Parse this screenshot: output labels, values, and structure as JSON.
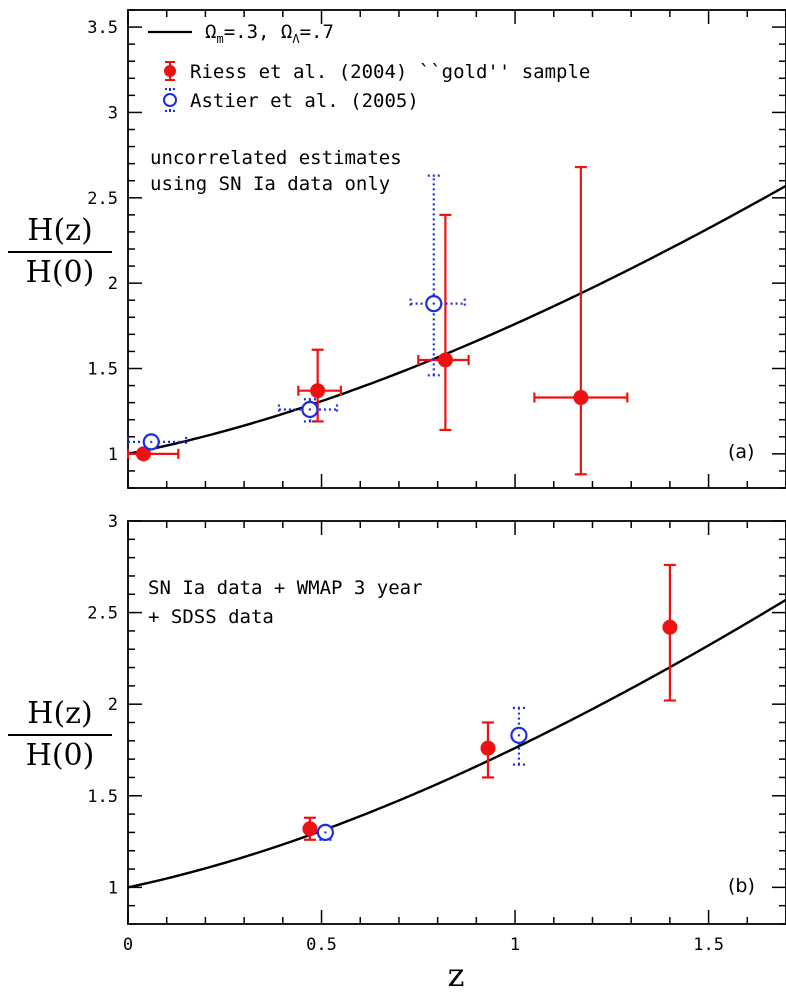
{
  "colors": {
    "riess": "#ee1111",
    "astier": "#1a2fe0",
    "model": "#000000"
  },
  "chart_data": [
    {
      "type": "scatter",
      "panel_label": "(a)",
      "xlabel": "z",
      "ylabel_num": "H(z)",
      "ylabel_den": "H(0)",
      "xlim": [
        0,
        1.7
      ],
      "ylim": [
        0.8,
        3.6
      ],
      "xticks": [
        "0",
        "0.5",
        "1",
        "1.5"
      ],
      "xtick_values": [
        0,
        0.5,
        1,
        1.5
      ],
      "yticks": [
        "1",
        "1.5",
        "2",
        "2.5",
        "3",
        "3.5"
      ],
      "ytick_values": [
        1,
        1.5,
        2,
        2.5,
        3,
        3.5
      ],
      "annotation": [
        "uncorrelated estimates",
        "using SN Ia data only"
      ],
      "legend": {
        "model": {
          "name": "Ω",
          "sub_m": "m",
          "part1": "=.3,  Ω",
          "sub_l": "Λ",
          "part2": "=.7"
        },
        "riess": "Riess et al. (2004) ``gold'' sample",
        "astier": "Astier et al. (2005)"
      },
      "model_curve": {
        "omega_m": 0.3,
        "omega_lambda": 0.7
      },
      "series": [
        {
          "name": "Riess et al. (2004) ``gold'' sample",
          "marker": "filled-circle",
          "points": [
            {
              "x": 0.04,
              "y": 1.0,
              "xlo": 0.0,
              "xhi": 0.13,
              "ylo": 1.0,
              "yhi": 1.0
            },
            {
              "x": 0.49,
              "y": 1.37,
              "xlo": 0.44,
              "xhi": 0.55,
              "ylo": 1.19,
              "yhi": 1.61
            },
            {
              "x": 0.82,
              "y": 1.55,
              "xlo": 0.75,
              "xhi": 0.88,
              "ylo": 1.14,
              "yhi": 2.4
            },
            {
              "x": 1.17,
              "y": 1.33,
              "xlo": 1.05,
              "xhi": 1.29,
              "ylo": 0.88,
              "yhi": 2.68
            }
          ]
        },
        {
          "name": "Astier et al. (2005)",
          "marker": "open-circle",
          "points": [
            {
              "x": 0.06,
              "y": 1.07,
              "xlo": 0.0,
              "xhi": 0.15,
              "ylo": 1.04,
              "yhi": 1.1
            },
            {
              "x": 0.47,
              "y": 1.26,
              "xlo": 0.39,
              "xhi": 0.54,
              "ylo": 1.19,
              "yhi": 1.32
            },
            {
              "x": 0.79,
              "y": 1.88,
              "xlo": 0.73,
              "xhi": 0.87,
              "ylo": 1.46,
              "yhi": 2.63
            }
          ]
        }
      ]
    },
    {
      "type": "scatter",
      "panel_label": "(b)",
      "xlabel": "z",
      "ylabel_num": "H(z)",
      "ylabel_den": "H(0)",
      "xlim": [
        0,
        1.7
      ],
      "ylim": [
        0.8,
        3.0
      ],
      "xticks": [
        "0",
        "0.5",
        "1",
        "1.5"
      ],
      "xtick_values": [
        0,
        0.5,
        1,
        1.5
      ],
      "yticks": [
        "1",
        "1.5",
        "2",
        "2.5",
        "3"
      ],
      "ytick_values": [
        1,
        1.5,
        2,
        2.5,
        3
      ],
      "annotation": [
        "SN Ia data + WMAP 3 year",
        "+ SDSS data"
      ],
      "model_curve": {
        "omega_m": 0.3,
        "omega_lambda": 0.7
      },
      "series": [
        {
          "name": "Riess et al. (2004) ``gold'' sample",
          "marker": "filled-circle",
          "points": [
            {
              "x": 0.47,
              "y": 1.32,
              "ylo": 1.26,
              "yhi": 1.38
            },
            {
              "x": 0.93,
              "y": 1.76,
              "ylo": 1.6,
              "yhi": 1.9
            },
            {
              "x": 1.4,
              "y": 2.42,
              "ylo": 2.02,
              "yhi": 2.76
            }
          ]
        },
        {
          "name": "Astier et al. (2005)",
          "marker": "open-circle",
          "points": [
            {
              "x": 0.51,
              "y": 1.3,
              "ylo": 1.26,
              "yhi": 1.33
            },
            {
              "x": 1.01,
              "y": 1.83,
              "ylo": 1.67,
              "yhi": 1.98
            }
          ]
        }
      ]
    }
  ]
}
